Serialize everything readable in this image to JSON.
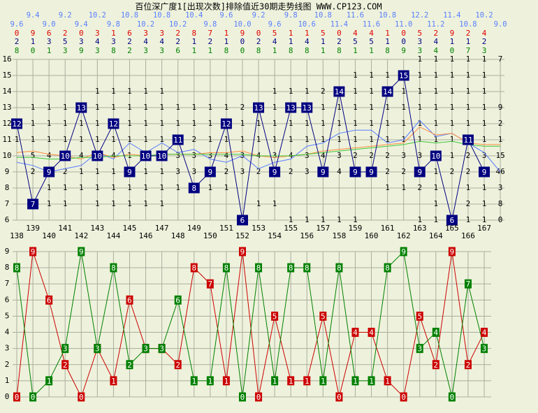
{
  "title": "百位深广度1[出现次数]排除值近30期走势线图 WWW.CP123.COM",
  "middle_digits": [
    2,
    1,
    3,
    5,
    3,
    4,
    3,
    2,
    4,
    4,
    2,
    1,
    2,
    1,
    0,
    2,
    4,
    1,
    4,
    1,
    2,
    5,
    5,
    1,
    0,
    3,
    4,
    1,
    1,
    2
  ],
  "chart_data": [
    {
      "type": "line",
      "categories": [
        138,
        139,
        140,
        141,
        142,
        143,
        144,
        145,
        146,
        147,
        148,
        149,
        150,
        151,
        152,
        153,
        154,
        155,
        156,
        157,
        158,
        159,
        160,
        161,
        162,
        163,
        164,
        165,
        166,
        167,
        null
      ],
      "ylim": [
        6,
        16
      ],
      "yticks": [
        6,
        7,
        8,
        9,
        10,
        11,
        12,
        13,
        14,
        15,
        16
      ],
      "grid": true,
      "series": [
        {
          "color": "#000080",
          "marker": "box",
          "values": [
            12,
            7,
            9,
            10,
            13,
            10,
            12,
            9,
            10,
            10,
            11,
            8,
            9,
            12,
            6,
            13,
            9,
            13,
            13,
            9,
            14,
            9,
            9,
            14,
            15,
            9,
            10,
            6,
            11,
            9,
            null
          ]
        },
        {
          "color": "#5a7dff",
          "values": [
            9.6,
            9.4,
            9.0,
            9.2,
            9.4,
            10.2,
            9.8,
            10.8,
            10.2,
            10.8,
            10.2,
            10.4,
            9.8,
            9.6,
            10.0,
            9.2,
            9.6,
            9.8,
            10.6,
            10.8,
            11.4,
            11.6,
            11.6,
            10.8,
            11.0,
            12.2,
            11.2,
            11.4,
            10.8,
            10.2,
            9.0
          ],
          "value_labels": [
            "9.6",
            "9.4",
            "9.0",
            "9.2",
            "9.4",
            "10.2",
            "9.8",
            "10.8",
            "10.2",
            "10.8",
            "10.2",
            "10.4",
            "9.8",
            "9.6",
            "10.0",
            "9.2",
            "9.6",
            "9.8",
            "10.6",
            "10.8",
            "11.4",
            "11.6",
            "11.6",
            "10.8",
            "11.0",
            "12.2",
            "11.2",
            "11.4",
            "10.8",
            "10.2",
            "9.0"
          ]
        },
        {
          "color": "#ff8c40",
          "values": [
            10.2,
            10.3,
            10.1,
            10.0,
            9.8,
            10.2,
            9.9,
            10.1,
            10.0,
            10.1,
            10.1,
            10.1,
            10.2,
            10.2,
            10.3,
            10.0,
            9.9,
            10.0,
            10.1,
            10.3,
            10.4,
            10.5,
            10.6,
            10.7,
            10.8,
            11.8,
            11.3,
            11.4,
            10.8,
            10.7,
            10.7
          ]
        },
        {
          "color": "#3cc83c",
          "values": [
            9.9,
            9.9,
            9.8,
            9.8,
            9.9,
            9.9,
            10.0,
            10.0,
            10.0,
            10.1,
            10.1,
            10.1,
            10.1,
            10.1,
            10.1,
            10.0,
            10.0,
            10.0,
            10.1,
            10.2,
            10.3,
            10.4,
            10.5,
            10.6,
            10.7,
            10.9,
            10.8,
            10.9,
            10.7,
            10.6,
            10.6
          ]
        }
      ],
      "cell_labels": [
        [
          null,
          null,
          null,
          null,
          null,
          null,
          null,
          null,
          null,
          null,
          null,
          null,
          null,
          null,
          null,
          null,
          null,
          "1",
          "1",
          "1",
          "1",
          "1",
          null,
          null,
          null,
          "1",
          "1",
          null,
          "1",
          "1",
          "0"
        ],
        [
          null,
          null,
          "1",
          "1",
          null,
          "1",
          "1",
          "1",
          "1",
          "1",
          null,
          null,
          null,
          null,
          null,
          "1",
          "1",
          null,
          null,
          null,
          null,
          null,
          null,
          null,
          null,
          null,
          "1",
          null,
          "2",
          "1",
          "8"
        ],
        [
          null,
          null,
          "1",
          "1",
          "1",
          "1",
          "1",
          "1",
          "1",
          "1",
          "1",
          null,
          "1",
          "1",
          null,
          null,
          null,
          null,
          null,
          null,
          null,
          null,
          null,
          "1",
          "1",
          "2",
          "1",
          null,
          "1",
          "1",
          "3"
        ],
        [
          null,
          "2",
          null,
          "2",
          "1",
          "1",
          "1",
          null,
          "1",
          "1",
          "3",
          "3",
          null,
          "2",
          "3",
          "2",
          null,
          "2",
          "3",
          null,
          "4",
          null,
          null,
          "2",
          "2",
          null,
          "1",
          "2",
          "2",
          null,
          "46"
        ],
        [
          null,
          "5",
          "4",
          null,
          "4",
          null,
          "4",
          "1",
          null,
          null,
          "3",
          "3",
          "3",
          "4",
          "3",
          "4",
          "3",
          "4",
          "3",
          "4",
          "3",
          "2",
          "2",
          "2",
          "3",
          "3",
          null,
          "1",
          "2",
          "3",
          "15"
        ],
        [
          "1",
          "1",
          "1",
          "1",
          "1",
          "1",
          "1",
          "1",
          "1",
          "1",
          null,
          "2",
          "1",
          "1",
          "1",
          "1",
          "1",
          "1",
          "1",
          "1",
          "1",
          "1",
          "1",
          "1",
          "1",
          "1",
          "1",
          "1",
          null,
          "1",
          "1"
        ],
        [
          null,
          "1",
          "1",
          "1",
          "1",
          "1",
          null,
          "1",
          "1",
          "1",
          "1",
          "1",
          "1",
          null,
          "1",
          "1",
          "1",
          "1",
          "1",
          "1",
          "1",
          "1",
          "1",
          "1",
          "1",
          "1",
          "1",
          "1",
          "1",
          "1",
          "2"
        ],
        [
          null,
          "1",
          "1",
          "1",
          null,
          "1",
          "1",
          "1",
          "1",
          "1",
          "1",
          "1",
          "1",
          "1",
          "2",
          null,
          "1",
          null,
          null,
          "1",
          "1",
          "1",
          "1",
          "1",
          "1",
          "1",
          "1",
          "1",
          "1",
          "1",
          "9"
        ],
        [
          null,
          null,
          null,
          null,
          null,
          "1",
          "1",
          "1",
          "1",
          "1",
          null,
          null,
          null,
          null,
          null,
          null,
          "1",
          "1",
          "1",
          "2",
          null,
          "1",
          "1",
          null,
          "1",
          "1",
          "1",
          "1",
          "1",
          "1",
          null
        ],
        [
          null,
          null,
          null,
          null,
          null,
          null,
          null,
          null,
          null,
          null,
          null,
          null,
          null,
          null,
          null,
          null,
          null,
          null,
          null,
          null,
          null,
          "1",
          "1",
          "1",
          null,
          "1",
          "1",
          "1",
          "1",
          "1",
          null
        ],
        [
          null,
          null,
          null,
          null,
          null,
          null,
          null,
          null,
          null,
          null,
          null,
          null,
          null,
          null,
          null,
          null,
          null,
          null,
          null,
          null,
          null,
          null,
          null,
          null,
          null,
          "1",
          "1",
          "1",
          "1",
          "1",
          "7"
        ]
      ]
    },
    {
      "type": "line",
      "ylim": [
        0,
        9
      ],
      "yticks": [
        0,
        1,
        2,
        3,
        4,
        5,
        6,
        7,
        8,
        9
      ],
      "grid": true,
      "series": [
        {
          "color": "#cc0000",
          "marker": "box",
          "values": [
            0,
            9,
            6,
            2,
            0,
            3,
            1,
            6,
            3,
            3,
            2,
            8,
            7,
            1,
            9,
            0,
            5,
            1,
            1,
            5,
            0,
            4,
            4,
            1,
            0,
            5,
            2,
            9,
            2,
            4
          ]
        },
        {
          "color": "#008000",
          "marker": "box",
          "values": [
            8,
            0,
            1,
            3,
            9,
            3,
            8,
            2,
            3,
            3,
            6,
            1,
            1,
            8,
            0,
            8,
            1,
            8,
            8,
            1,
            8,
            1,
            1,
            8,
            9,
            3,
            4,
            0,
            7,
            3
          ]
        }
      ]
    }
  ]
}
